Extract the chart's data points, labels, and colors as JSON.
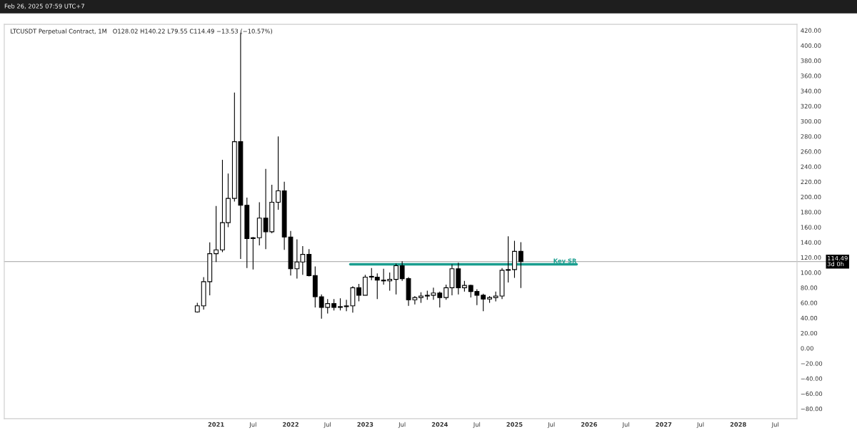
{
  "chart_data": {
    "type": "candlestick",
    "title": "LTCUSDT Perpetual Contract, 1M",
    "subtitle": "O128.02 H140.22 L79.55 C114.49 −13.53 (−10.57%)",
    "annotations": [
      "Feb 26, 2025 07:59 UTC+7"
    ],
    "x": [
      "2020-10",
      "2020-11",
      "2020-12",
      "2021-01",
      "2021-02",
      "2021-03",
      "2021-04",
      "2021-05",
      "2021-06",
      "2021-07",
      "2021-08",
      "2021-09",
      "2021-10",
      "2021-11",
      "2021-12",
      "2022-01",
      "2022-02",
      "2022-03",
      "2022-04",
      "2022-05",
      "2022-06",
      "2022-07",
      "2022-08",
      "2022-09",
      "2022-10",
      "2022-11",
      "2022-12",
      "2023-01",
      "2023-02",
      "2023-03",
      "2023-04",
      "2023-05",
      "2023-06",
      "2023-07",
      "2023-08",
      "2023-09",
      "2023-10",
      "2023-11",
      "2023-12",
      "2024-01",
      "2024-02",
      "2024-03",
      "2024-04",
      "2024-05",
      "2024-06",
      "2024-07",
      "2024-08",
      "2024-09",
      "2024-10",
      "2024-11",
      "2024-12",
      "2025-01",
      "2025-02"
    ],
    "ohlc": [
      [
        48,
        60,
        47,
        56
      ],
      [
        56,
        94,
        51,
        88
      ],
      [
        88,
        140,
        70,
        125
      ],
      [
        125,
        188,
        114,
        130
      ],
      [
        130,
        249,
        127,
        166
      ],
      [
        166,
        231,
        160,
        198
      ],
      [
        198,
        338,
        194,
        273
      ],
      [
        273,
        417,
        118,
        189
      ],
      [
        189,
        199,
        106,
        145
      ],
      [
        145,
        147,
        104,
        146
      ],
      [
        146,
        193,
        136,
        172
      ],
      [
        172,
        237,
        131,
        154
      ],
      [
        154,
        216,
        152,
        193
      ],
      [
        193,
        280,
        183,
        208
      ],
      [
        208,
        220,
        130,
        147
      ],
      [
        147,
        155,
        96,
        105
      ],
      [
        105,
        144,
        92,
        114
      ],
      [
        114,
        135,
        97,
        124
      ],
      [
        124,
        131,
        95,
        96
      ],
      [
        96,
        108,
        54,
        68
      ],
      [
        68,
        71,
        39,
        54
      ],
      [
        54,
        65,
        46,
        59
      ],
      [
        59,
        65,
        50,
        54
      ],
      [
        54,
        66,
        50,
        55
      ],
      [
        55,
        64,
        49,
        56
      ],
      [
        56,
        82,
        47,
        80
      ],
      [
        80,
        85,
        62,
        70
      ],
      [
        70,
        97,
        70,
        94
      ],
      [
        94,
        106,
        90,
        95
      ],
      [
        94,
        99,
        65,
        90
      ],
      [
        90,
        105,
        84,
        89
      ],
      [
        89,
        100,
        76,
        91
      ],
      [
        91,
        112,
        71,
        109
      ],
      [
        109,
        115,
        89,
        92
      ],
      [
        92,
        94,
        56,
        64
      ],
      [
        64,
        69,
        58,
        67
      ],
      [
        67,
        74,
        60,
        69
      ],
      [
        69,
        76,
        64,
        70
      ],
      [
        70,
        80,
        64,
        73
      ],
      [
        73,
        75,
        54,
        67
      ],
      [
        67,
        84,
        64,
        80
      ],
      [
        80,
        111,
        70,
        105
      ],
      [
        105,
        113,
        71,
        80
      ],
      [
        80,
        89,
        75,
        83
      ],
      [
        83,
        84,
        67,
        75
      ],
      [
        75,
        78,
        57,
        70
      ],
      [
        70,
        72,
        49,
        65
      ],
      [
        65,
        69,
        60,
        67
      ],
      [
        67,
        75,
        62,
        69
      ],
      [
        69,
        106,
        65,
        103
      ],
      [
        103,
        148,
        87,
        104
      ],
      [
        104,
        142,
        93,
        128
      ],
      [
        128.02,
        140.22,
        79.55,
        114.49
      ]
    ],
    "colors": [
      "#ffffff",
      "#ffffff",
      "#ffffff",
      "#ffffff",
      "#ffffff",
      "#ffffff",
      "#ffffff",
      "#000000",
      "#000000",
      "#ffffff",
      "#ffffff",
      "#000000",
      "#ffffff",
      "#ffffff",
      "#000000",
      "#000000",
      "#ffffff",
      "#ffffff",
      "#000000",
      "#000000",
      "#000000",
      "#ffffff",
      "#000000",
      "#ffffff",
      "#ffffff",
      "#ffffff",
      "#000000",
      "#ffffff",
      "#ffffff",
      "#000000",
      "#000000",
      "#ffffff",
      "#ffffff",
      "#000000",
      "#000000",
      "#ffffff",
      "#ffffff",
      "#ffffff",
      "#ffffff",
      "#000000",
      "#ffffff",
      "#ffffff",
      "#000000",
      "#ffffff",
      "#000000",
      "#000000",
      "#000000",
      "#ffffff",
      "#ffffff",
      "#ffffff",
      "#ffffff",
      "#ffffff",
      "#000000"
    ],
    "series": [
      {
        "name": "Key SR",
        "type": "line",
        "color": "#1a9e8f",
        "x": [
          "2022-10-20",
          "2025-11-01"
        ],
        "values": [
          111,
          111
        ]
      }
    ],
    "ref_lines": [
      {
        "axis": "y",
        "value": 114.49,
        "label": "114.49\n3d 0h",
        "color": "#9e9e9e"
      }
    ],
    "xlim": [
      "2018-03-01",
      "2028-10-15"
    ],
    "xticks": [
      {
        "value": "2021-01-01",
        "label": "2021"
      },
      {
        "value": "2021-07-01",
        "label": "Jul"
      },
      {
        "value": "2022-01-01",
        "label": "2022"
      },
      {
        "value": "2022-07-01",
        "label": "Jul"
      },
      {
        "value": "2023-01-01",
        "label": "2023"
      },
      {
        "value": "2023-07-01",
        "label": "Jul"
      },
      {
        "value": "2024-01-01",
        "label": "2024"
      },
      {
        "value": "2024-07-01",
        "label": "Jul"
      },
      {
        "value": "2025-01-01",
        "label": "2025"
      },
      {
        "value": "2025-07-01",
        "label": "Jul"
      },
      {
        "value": "2026-01-01",
        "label": "2026"
      },
      {
        "value": "2026-07-01",
        "label": "Jul"
      },
      {
        "value": "2027-01-01",
        "label": "2027"
      },
      {
        "value": "2027-07-01",
        "label": "Jul"
      },
      {
        "value": "2028-01-01",
        "label": "2028"
      },
      {
        "value": "2028-07-01",
        "label": "Jul"
      }
    ],
    "ylim": [
      -93,
      428
    ],
    "yticks": [
      {
        "value": -80,
        "label": "−80.00"
      },
      {
        "value": -60,
        "label": "−60.00"
      },
      {
        "value": -40,
        "label": "−40.00"
      },
      {
        "value": -20,
        "label": "−20.00"
      },
      {
        "value": 0,
        "label": "0.00"
      },
      {
        "value": 20,
        "label": "20.00"
      },
      {
        "value": 40,
        "label": "40.00"
      },
      {
        "value": 60,
        "label": "60.00"
      },
      {
        "value": 80,
        "label": "80.00"
      },
      {
        "value": 100,
        "label": "100.00"
      },
      {
        "value": 120,
        "label": "120.00"
      },
      {
        "value": 140,
        "label": "140.00"
      },
      {
        "value": 160,
        "label": "160.00"
      },
      {
        "value": 180,
        "label": "180.00"
      },
      {
        "value": 200,
        "label": "200.00"
      },
      {
        "value": 220,
        "label": "220.00"
      },
      {
        "value": 240,
        "label": "240.00"
      },
      {
        "value": 260,
        "label": "260.00"
      },
      {
        "value": 280,
        "label": "280.00"
      },
      {
        "value": 300,
        "label": "300.00"
      },
      {
        "value": 320,
        "label": "320.00"
      },
      {
        "value": 340,
        "label": "340.00"
      },
      {
        "value": 360,
        "label": "360.00"
      },
      {
        "value": 380,
        "label": "380.00"
      },
      {
        "value": 400,
        "label": "400.00"
      },
      {
        "value": 420,
        "label": "420.00"
      }
    ]
  }
}
